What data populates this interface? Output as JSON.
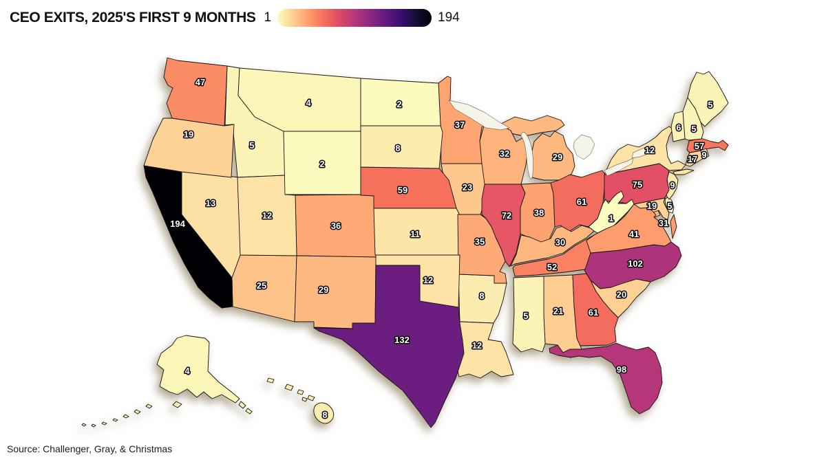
{
  "title": "CEO EXITS, 2025'S FIRST 9 MONTHS",
  "legend": {
    "min_label": "1",
    "max_label": "194",
    "min": 1,
    "max": 194,
    "gradient": [
      "#fcfdbf",
      "#fecf92",
      "#fe9f6d",
      "#f7705c",
      "#de4968",
      "#b73779",
      "#8c2981",
      "#641a80",
      "#3b0f70",
      "#140e36",
      "#000004"
    ]
  },
  "source": "Source: Challenger, Gray, & Christmas",
  "chart_data": {
    "type": "choropleth",
    "title": "CEO EXITS, 2025'S FIRST 9 MONTHS",
    "region": "United States, by state (incl. District of Columbia)",
    "value_range": [
      1,
      194
    ],
    "colormap": "magma reversed (1 = pale cream, 194 = black)",
    "source": "Source: Challenger, Gray, & Christmas",
    "states": [
      {
        "abbr": "AK",
        "name": "Alaska",
        "value": 4
      },
      {
        "abbr": "AL",
        "name": "Alabama",
        "value": 21
      },
      {
        "abbr": "AR",
        "name": "Arkansas",
        "value": 8
      },
      {
        "abbr": "AZ",
        "name": "Arizona",
        "value": 25
      },
      {
        "abbr": "CA",
        "name": "California",
        "value": 194
      },
      {
        "abbr": "CO",
        "name": "Colorado",
        "value": 36
      },
      {
        "abbr": "CT",
        "name": "Connecticut",
        "value": 17
      },
      {
        "abbr": "DC",
        "name": "District of Columbia",
        "value": 31
      },
      {
        "abbr": "DE",
        "name": "Delaware",
        "value": 5
      },
      {
        "abbr": "FL",
        "name": "Florida",
        "value": 98
      },
      {
        "abbr": "GA",
        "name": "Georgia",
        "value": 61
      },
      {
        "abbr": "HI",
        "name": "Hawaii",
        "value": 8
      },
      {
        "abbr": "IA",
        "name": "Iowa",
        "value": 23
      },
      {
        "abbr": "ID",
        "name": "Idaho",
        "value": 5
      },
      {
        "abbr": "IL",
        "name": "Illinois",
        "value": 72
      },
      {
        "abbr": "IN",
        "name": "Indiana",
        "value": 38
      },
      {
        "abbr": "KS",
        "name": "Kansas",
        "value": 11
      },
      {
        "abbr": "KY",
        "name": "Kentucky",
        "value": 30
      },
      {
        "abbr": "LA",
        "name": "Louisiana",
        "value": 12
      },
      {
        "abbr": "MA",
        "name": "Massachusetts",
        "value": 57
      },
      {
        "abbr": "MD",
        "name": "Maryland",
        "value": 19
      },
      {
        "abbr": "ME",
        "name": "Maine",
        "value": 5
      },
      {
        "abbr": "MI",
        "name": "Michigan",
        "value": 29
      },
      {
        "abbr": "MN",
        "name": "Minnesota",
        "value": 37
      },
      {
        "abbr": "MO",
        "name": "Missouri",
        "value": 35
      },
      {
        "abbr": "MS",
        "name": "Mississippi",
        "value": 5
      },
      {
        "abbr": "MT",
        "name": "Montana",
        "value": 4
      },
      {
        "abbr": "NC",
        "name": "North Carolina",
        "value": 102
      },
      {
        "abbr": "ND",
        "name": "North Dakota",
        "value": 2
      },
      {
        "abbr": "NE",
        "name": "Nebraska",
        "value": 59
      },
      {
        "abbr": "NH",
        "name": "New Hampshire",
        "value": 5
      },
      {
        "abbr": "NJ",
        "name": "New Jersey",
        "value": 9
      },
      {
        "abbr": "NM",
        "name": "New Mexico",
        "value": 29
      },
      {
        "abbr": "NV",
        "name": "Nevada",
        "value": 13
      },
      {
        "abbr": "NY",
        "name": "New York",
        "value": 12
      },
      {
        "abbr": "OH",
        "name": "Ohio",
        "value": 61
      },
      {
        "abbr": "OK",
        "name": "Oklahoma",
        "value": 12
      },
      {
        "abbr": "OR",
        "name": "Oregon",
        "value": 19
      },
      {
        "abbr": "PA",
        "name": "Pennsylvania",
        "value": 75
      },
      {
        "abbr": "RI",
        "name": "Rhode Island",
        "value": 9
      },
      {
        "abbr": "SC",
        "name": "South Carolina",
        "value": 20
      },
      {
        "abbr": "SD",
        "name": "South Dakota",
        "value": 8
      },
      {
        "abbr": "TN",
        "name": "Tennessee",
        "value": 52
      },
      {
        "abbr": "TX",
        "name": "Texas",
        "value": 132
      },
      {
        "abbr": "UT",
        "name": "Utah",
        "value": 12
      },
      {
        "abbr": "VA",
        "name": "Virginia",
        "value": 41
      },
      {
        "abbr": "VT",
        "name": "Vermont",
        "value": 6
      },
      {
        "abbr": "WA",
        "name": "Washington",
        "value": 47
      },
      {
        "abbr": "WI",
        "name": "Wisconsin",
        "value": 32
      },
      {
        "abbr": "WV",
        "name": "West Virginia",
        "value": 1
      },
      {
        "abbr": "WY",
        "name": "Wyoming",
        "value": 2
      }
    ]
  }
}
